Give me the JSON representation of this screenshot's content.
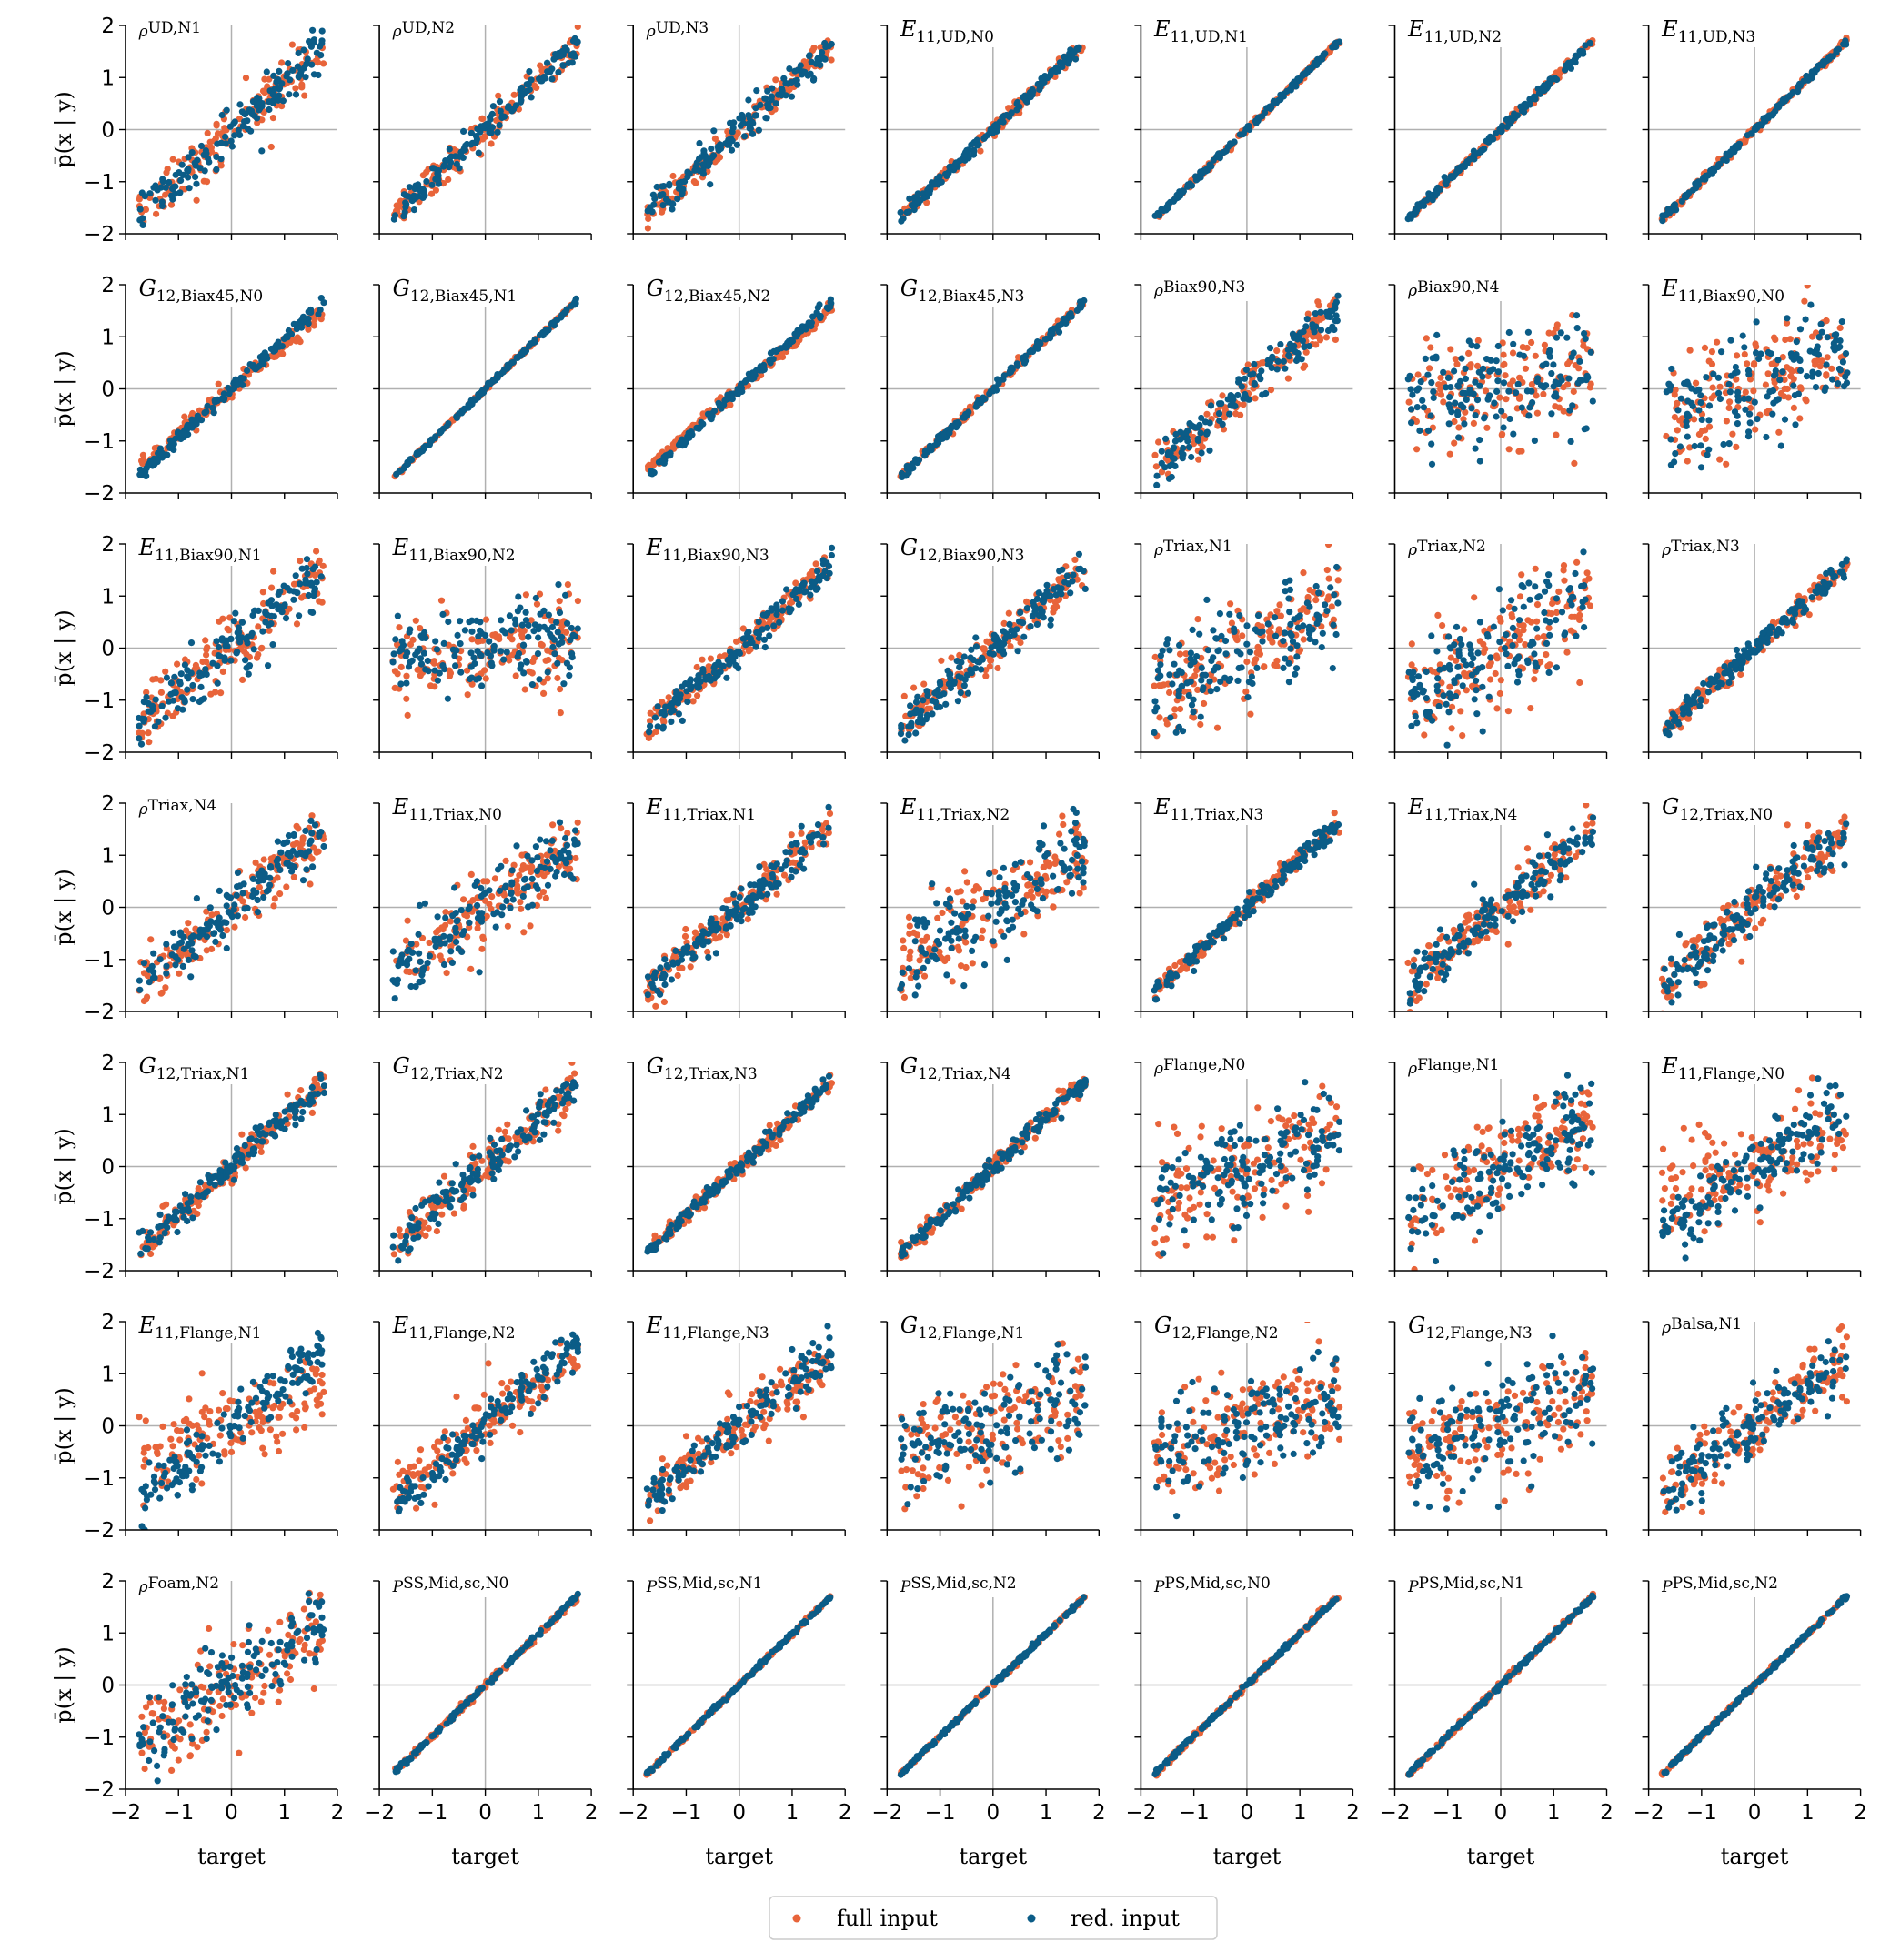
{
  "colors": {
    "full": "#e8643a",
    "red": "#0b5c87",
    "refline": "#b0b0b0"
  },
  "chart_data": {
    "type": "scatter",
    "grid_rows": 7,
    "grid_cols": 7,
    "xlim": [
      -2,
      2
    ],
    "ylim": [
      -2,
      2
    ],
    "x_ticks": [
      "−2",
      "−1",
      "0",
      "1",
      "2"
    ],
    "y_ticks": [
      "2",
      "1",
      "0",
      "−1",
      "−2"
    ],
    "xlabel": "target",
    "ylabel": "p̄(x | y)",
    "legend": {
      "placement": "bottom-center",
      "entries": [
        "full input",
        "red. input"
      ]
    },
    "reference_lines": {
      "x": 0,
      "y": 0
    },
    "panels": [
      {
        "sym": "ρ",
        "sub": "UD,N1",
        "slope_full": 0.9,
        "spread_full": 0.25,
        "slope_red": 0.9,
        "spread_red": 0.22
      },
      {
        "sym": "ρ",
        "sub": "UD,N2",
        "slope_full": 0.95,
        "spread_full": 0.15,
        "slope_red": 0.95,
        "spread_red": 0.13
      },
      {
        "sym": "ρ",
        "sub": "UD,N3",
        "slope_full": 0.95,
        "spread_full": 0.15,
        "slope_red": 0.93,
        "spread_red": 0.14
      },
      {
        "sym": "E",
        "symsub": "11",
        "sub": "UD,N0",
        "slope_full": 0.95,
        "spread_full": 0.07,
        "slope_red": 0.97,
        "spread_red": 0.06
      },
      {
        "sym": "E",
        "symsub": "11",
        "sub": "UD,N1",
        "slope_full": 0.98,
        "spread_full": 0.03,
        "slope_red": 0.98,
        "spread_red": 0.03
      },
      {
        "sym": "E",
        "symsub": "11",
        "sub": "UD,N2",
        "slope_full": 0.98,
        "spread_full": 0.04,
        "slope_red": 0.98,
        "spread_red": 0.04
      },
      {
        "sym": "E",
        "symsub": "11",
        "sub": "UD,N3",
        "slope_full": 0.99,
        "spread_full": 0.04,
        "slope_red": 0.98,
        "spread_red": 0.03
      },
      {
        "sym": "G",
        "symsub": "12",
        "sub": "Biax45,N0",
        "slope_full": 0.85,
        "spread_full": 0.08,
        "slope_red": 0.95,
        "spread_red": 0.07
      },
      {
        "sym": "G",
        "symsub": "12",
        "sub": "Biax45,N1",
        "slope_full": 0.98,
        "spread_full": 0.02,
        "slope_red": 0.98,
        "spread_red": 0.02
      },
      {
        "sym": "G",
        "symsub": "12",
        "sub": "Biax45,N2",
        "slope_full": 0.88,
        "spread_full": 0.06,
        "slope_red": 0.96,
        "spread_red": 0.05
      },
      {
        "sym": "G",
        "symsub": "12",
        "sub": "Biax45,N3",
        "slope_full": 0.97,
        "spread_full": 0.04,
        "slope_red": 0.97,
        "spread_red": 0.04
      },
      {
        "sym": "ρ",
        "sub": "Biax90,N3",
        "slope_full": 0.9,
        "spread_full": 0.22,
        "slope_red": 0.9,
        "spread_red": 0.2
      },
      {
        "sym": "ρ",
        "sub": "Biax90,N4",
        "slope_full": 0.2,
        "spread_full": 0.55,
        "slope_red": 0.15,
        "spread_red": 0.5
      },
      {
        "sym": "E",
        "symsub": "11",
        "sub": "Biax90,N0",
        "slope_full": 0.35,
        "spread_full": 0.55,
        "slope_red": 0.35,
        "spread_red": 0.55
      },
      {
        "sym": "E",
        "symsub": "11",
        "sub": "Biax90,N1",
        "slope_full": 0.8,
        "spread_full": 0.3,
        "slope_red": 0.85,
        "spread_red": 0.28
      },
      {
        "sym": "E",
        "symsub": "11",
        "sub": "Biax90,N2",
        "slope_full": 0.15,
        "spread_full": 0.45,
        "slope_red": 0.12,
        "spread_red": 0.4
      },
      {
        "sym": "E",
        "symsub": "11",
        "sub": "Biax90,N3",
        "slope_full": 0.9,
        "spread_full": 0.15,
        "slope_red": 0.92,
        "spread_red": 0.14
      },
      {
        "sym": "G",
        "symsub": "12",
        "sub": "Biax90,N3",
        "slope_full": 0.85,
        "spread_full": 0.2,
        "slope_red": 0.88,
        "spread_red": 0.18
      },
      {
        "sym": "ρ",
        "sub": "Triax,N1",
        "slope_full": 0.5,
        "spread_full": 0.5,
        "slope_red": 0.5,
        "spread_red": 0.48
      },
      {
        "sym": "ρ",
        "sub": "Triax,N2",
        "slope_full": 0.55,
        "spread_full": 0.5,
        "slope_red": 0.55,
        "spread_red": 0.48
      },
      {
        "sym": "ρ",
        "sub": "Triax,N3",
        "slope_full": 0.92,
        "spread_full": 0.1,
        "slope_red": 0.92,
        "spread_red": 0.1
      },
      {
        "sym": "ρ",
        "sub": "Triax,N4",
        "slope_full": 0.85,
        "spread_full": 0.28,
        "slope_red": 0.85,
        "spread_red": 0.26
      },
      {
        "sym": "E",
        "symsub": "11",
        "sub": "Triax,N0",
        "slope_full": 0.7,
        "spread_full": 0.35,
        "slope_red": 0.7,
        "spread_red": 0.33
      },
      {
        "sym": "E",
        "symsub": "11",
        "sub": "Triax,N1",
        "slope_full": 0.9,
        "spread_full": 0.18,
        "slope_red": 0.9,
        "spread_red": 0.17
      },
      {
        "sym": "E",
        "symsub": "11",
        "sub": "Triax,N2",
        "slope_full": 0.6,
        "spread_full": 0.45,
        "slope_red": 0.6,
        "spread_red": 0.42
      },
      {
        "sym": "E",
        "symsub": "11",
        "sub": "Triax,N3",
        "slope_full": 0.93,
        "spread_full": 0.1,
        "slope_red": 0.93,
        "spread_red": 0.09
      },
      {
        "sym": "E",
        "symsub": "11",
        "sub": "Triax,N4",
        "slope_full": 0.85,
        "spread_full": 0.25,
        "slope_red": 0.85,
        "spread_red": 0.23
      },
      {
        "sym": "G",
        "symsub": "12",
        "sub": "Triax,N0",
        "slope_full": 0.85,
        "spread_full": 0.28,
        "slope_red": 0.85,
        "spread_red": 0.26
      },
      {
        "sym": "G",
        "symsub": "12",
        "sub": "Triax,N1",
        "slope_full": 0.92,
        "spread_full": 0.13,
        "slope_red": 0.92,
        "spread_red": 0.12
      },
      {
        "sym": "G",
        "symsub": "12",
        "sub": "Triax,N2",
        "slope_full": 0.88,
        "spread_full": 0.2,
        "slope_red": 0.88,
        "spread_red": 0.19
      },
      {
        "sym": "G",
        "symsub": "12",
        "sub": "Triax,N3",
        "slope_full": 0.93,
        "spread_full": 0.08,
        "slope_red": 0.95,
        "spread_red": 0.07
      },
      {
        "sym": "G",
        "symsub": "12",
        "sub": "Triax,N4",
        "slope_full": 0.95,
        "spread_full": 0.1,
        "slope_red": 0.94,
        "spread_red": 0.09
      },
      {
        "sym": "ρ",
        "sub": "Flange,N0",
        "slope_full": 0.35,
        "spread_full": 0.5,
        "slope_red": 0.35,
        "spread_red": 0.48
      },
      {
        "sym": "ρ",
        "sub": "Flange,N1",
        "slope_full": 0.55,
        "spread_full": 0.5,
        "slope_red": 0.55,
        "spread_red": 0.45
      },
      {
        "sym": "E",
        "symsub": "11",
        "sub": "Flange,N0",
        "slope_full": 0.4,
        "spread_full": 0.45,
        "slope_red": 0.7,
        "spread_red": 0.35
      },
      {
        "sym": "E",
        "symsub": "11",
        "sub": "Flange,N1",
        "slope_full": 0.35,
        "spread_full": 0.4,
        "slope_red": 0.85,
        "spread_red": 0.25
      },
      {
        "sym": "E",
        "symsub": "11",
        "sub": "Flange,N2",
        "slope_full": 0.75,
        "spread_full": 0.3,
        "slope_red": 0.9,
        "spread_red": 0.18
      },
      {
        "sym": "E",
        "symsub": "11",
        "sub": "Flange,N3",
        "slope_full": 0.75,
        "spread_full": 0.25,
        "slope_red": 0.85,
        "spread_red": 0.2
      },
      {
        "sym": "G",
        "symsub": "12",
        "sub": "Flange,N1",
        "slope_full": 0.3,
        "spread_full": 0.55,
        "slope_red": 0.3,
        "spread_red": 0.52
      },
      {
        "sym": "G",
        "symsub": "12",
        "sub": "Flange,N2",
        "slope_full": 0.35,
        "spread_full": 0.5,
        "slope_red": 0.35,
        "spread_red": 0.48
      },
      {
        "sym": "G",
        "symsub": "12",
        "sub": "Flange,N3",
        "slope_full": 0.35,
        "spread_full": 0.5,
        "slope_red": 0.35,
        "spread_red": 0.55
      },
      {
        "sym": "ρ",
        "sub": "Balsa,N1",
        "slope_full": 0.8,
        "spread_full": 0.35,
        "slope_red": 0.75,
        "spread_red": 0.3
      },
      {
        "sym": "ρ",
        "sub": "Foam,N2",
        "slope_full": 0.55,
        "spread_full": 0.45,
        "slope_red": 0.6,
        "spread_red": 0.42
      },
      {
        "sym": "P",
        "sub": "SS,Mid,sc,N0",
        "slope_full": 0.97,
        "spread_full": 0.03,
        "slope_red": 0.98,
        "spread_red": 0.02
      },
      {
        "sym": "P",
        "sub": "SS,Mid,sc,N1",
        "slope_full": 0.98,
        "spread_full": 0.02,
        "slope_red": 0.98,
        "spread_red": 0.02
      },
      {
        "sym": "P",
        "sub": "SS,Mid,sc,N2",
        "slope_full": 0.98,
        "spread_full": 0.02,
        "slope_red": 0.98,
        "spread_red": 0.02
      },
      {
        "sym": "P",
        "sub": "PS,Mid,sc,N0",
        "slope_full": 0.99,
        "spread_full": 0.03,
        "slope_red": 0.98,
        "spread_red": 0.02
      },
      {
        "sym": "P",
        "sub": "PS,Mid,sc,N1",
        "slope_full": 0.99,
        "spread_full": 0.03,
        "slope_red": 0.98,
        "spread_red": 0.02
      },
      {
        "sym": "P",
        "sub": "PS,Mid,sc,N2",
        "slope_full": 0.98,
        "spread_full": 0.02,
        "slope_red": 0.98,
        "spread_red": 0.02
      }
    ]
  }
}
